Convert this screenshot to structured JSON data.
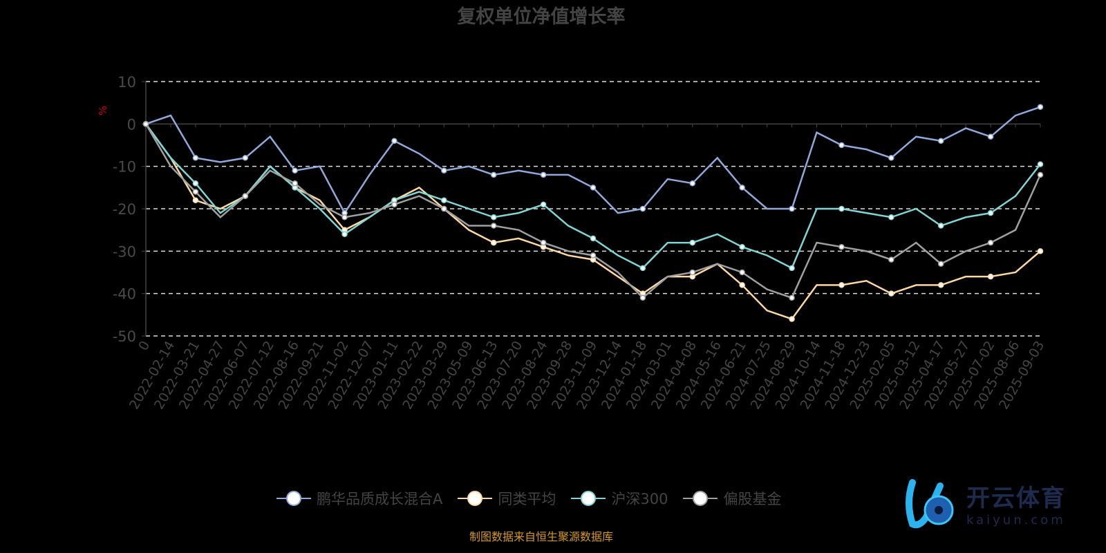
{
  "chart_data": {
    "type": "line",
    "title": "复权单位净值增长率",
    "ylabel": "%",
    "xlabel": "",
    "ylim": [
      -50,
      10
    ],
    "yticks": [
      10,
      0,
      -10,
      -20,
      -30,
      -40,
      -50
    ],
    "grid": true,
    "legend_position": "bottom",
    "x": [
      "0",
      "2022-02-14",
      "2022-03-21",
      "2022-04-27",
      "2022-06-07",
      "2022-07-12",
      "2022-08-16",
      "2022-09-21",
      "2022-11-02",
      "2022-12-07",
      "2023-01-11",
      "2023-02-22",
      "2023-03-29",
      "2023-05-09",
      "2023-06-13",
      "2023-07-20",
      "2023-08-24",
      "2023-09-28",
      "2023-11-09",
      "2023-12-14",
      "2024-01-18",
      "2024-03-01",
      "2024-04-08",
      "2024-05-16",
      "2024-06-21",
      "2024-07-25",
      "2024-08-29",
      "2024-10-14",
      "2024-11-18",
      "2024-12-23",
      "2025-02-05",
      "2025-03-12",
      "2025-04-17",
      "2025-05-27",
      "2025-07-02",
      "2025-08-06",
      "2025-09-03"
    ],
    "series": [
      {
        "name": "鹏华品质成长混合A",
        "color": "#8eaadb",
        "values": [
          0,
          2,
          -8,
          -9,
          -8,
          -3,
          -11,
          -10,
          -21,
          -12,
          -4,
          -7,
          -11,
          -10,
          -12,
          -11,
          -12,
          -12,
          -15,
          -21,
          -20,
          -13,
          -14,
          -8,
          -15,
          -20,
          -20,
          -2,
          -5,
          -6,
          -8,
          -3,
          -4,
          -1,
          -3,
          2,
          4
        ]
      },
      {
        "name": "同类平均",
        "color": "#fdd9a0",
        "values": [
          0,
          -8,
          -18,
          -20,
          -17,
          -10,
          -15,
          -18,
          -25,
          -22,
          -18,
          -15,
          -20,
          -25,
          -28,
          -27,
          -29,
          -31,
          -32,
          -36,
          -40,
          -36,
          -36,
          -33,
          -38,
          -44,
          -46,
          -38,
          -38,
          -37,
          -40,
          -38,
          -38,
          -36,
          -36,
          -35,
          -30
        ]
      },
      {
        "name": "沪深300",
        "color": "#7fd6d6",
        "values": [
          0,
          -8,
          -14,
          -21,
          -17,
          -10,
          -15,
          -20,
          -26,
          -22,
          -18,
          -16,
          -18,
          -20,
          -22,
          -21,
          -19,
          -24,
          -27,
          -31,
          -34,
          -28,
          -28,
          -26,
          -29,
          -31,
          -34,
          -20,
          -20,
          -21,
          -22,
          -20,
          -24,
          -22,
          -21,
          -17,
          -9.5
        ]
      },
      {
        "name": "偏股基金",
        "color": "#a0a0a0",
        "values": [
          0,
          -10,
          -16,
          -22,
          -17,
          -11,
          -14,
          -19,
          -22,
          -21,
          -19,
          -17,
          -20,
          -24,
          -24,
          -25,
          -28,
          -30,
          -31,
          -35,
          -41,
          -36,
          -35,
          -33,
          -35,
          -39,
          -41,
          -28,
          -29,
          -30,
          -32,
          -28,
          -33,
          -30,
          -28,
          -25,
          -12
        ]
      }
    ]
  },
  "source": "制图数据来自恒生聚源数据库",
  "watermark": {
    "cn": "开云体育",
    "en": "kaiyun.com"
  }
}
